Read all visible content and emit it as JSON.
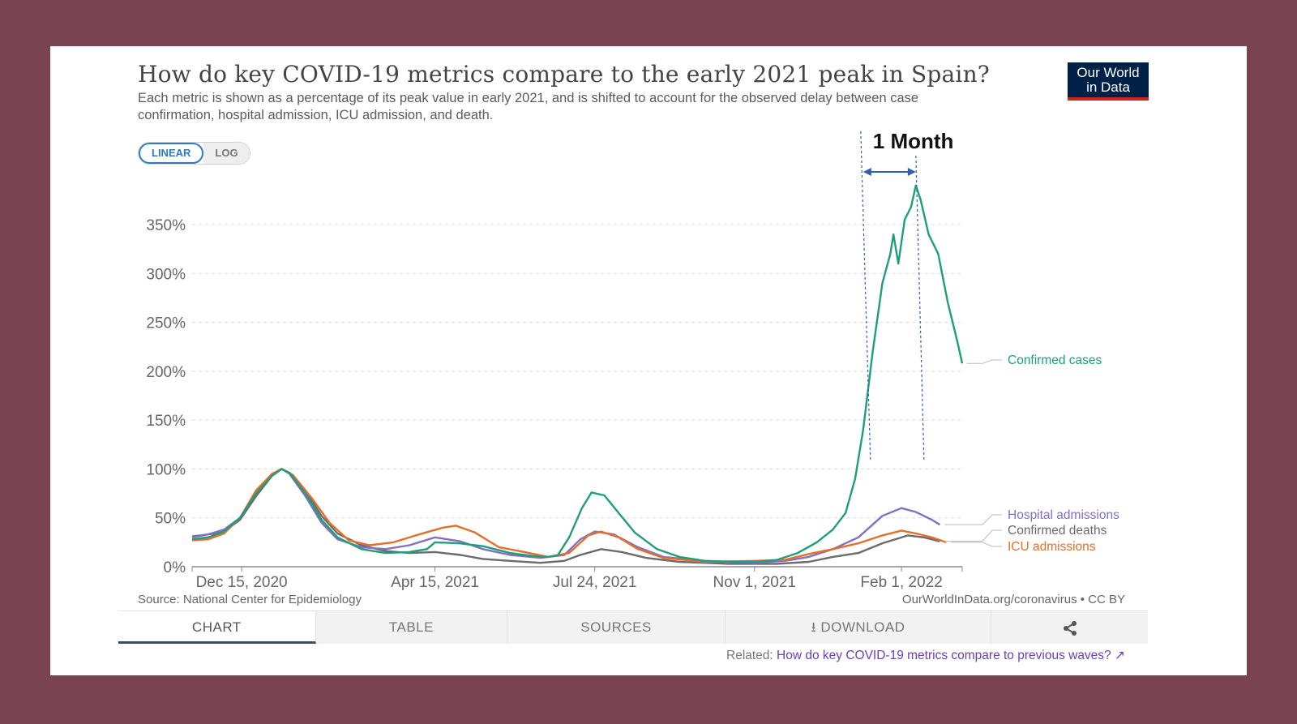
{
  "title": "How do key COVID-19 metrics compare to the early 2021 peak in Spain?",
  "subtitle": "Each metric is shown as a percentage of its peak value in early 2021, and is shifted to account for the observed delay between case confirmation, hospital admission, ICU admission, and death.",
  "logo": {
    "line1": "Our World",
    "line2": "in Data"
  },
  "scale_toggle": {
    "linear": "LINEAR",
    "log": "LOG"
  },
  "annotation": {
    "label": "1 Month"
  },
  "source_text": "Source: National Center for Epidemiology",
  "credit_text": "OurWorldInData.org/coronavirus • CC BY",
  "tabs": [
    "CHART",
    "TABLE",
    "SOURCES",
    "DOWNLOAD",
    ""
  ],
  "related": {
    "prefix": "Related:",
    "link": "How do key COVID-19 metrics compare to previous waves?"
  },
  "colors": {
    "confirmed_cases": "#1f9e7a",
    "hospital_admissions": "#8370c4",
    "confirmed_deaths": "#6b6b6b",
    "icu_admissions": "#e3702a",
    "annotation": "#2f5fb0"
  },
  "chart_data": {
    "type": "line",
    "xlabel": "",
    "ylabel": "",
    "ylim": [
      0,
      400
    ],
    "x_range": [
      "2020-11-14",
      "2022-03-11"
    ],
    "y_ticks": [
      0,
      50,
      100,
      150,
      200,
      250,
      300,
      350
    ],
    "y_tick_labels": [
      "0%",
      "50%",
      "100%",
      "150%",
      "200%",
      "250%",
      "300%",
      "350%"
    ],
    "x_ticks": [
      "2020-12-15",
      "2021-04-15",
      "2021-07-24",
      "2021-11-01",
      "2022-02-01"
    ],
    "x_tick_labels": [
      "Dec 15, 2020",
      "Apr 15, 2021",
      "Jul 24, 2021",
      "Nov 1, 2021",
      "Feb 1, 2022"
    ],
    "annotation": {
      "label": "1 Month",
      "from": "2022-01-08",
      "to": "2022-02-10"
    },
    "series": [
      {
        "name": "Confirmed cases",
        "key": "confirmed_cases",
        "points": [
          [
            "2020-11-14",
            28
          ],
          [
            "2020-11-24",
            30
          ],
          [
            "2020-12-04",
            36
          ],
          [
            "2020-12-14",
            50
          ],
          [
            "2020-12-24",
            75
          ],
          [
            "2021-01-03",
            93
          ],
          [
            "2021-01-09",
            100
          ],
          [
            "2021-01-14",
            96
          ],
          [
            "2021-01-24",
            75
          ],
          [
            "2021-02-03",
            48
          ],
          [
            "2021-02-13",
            30
          ],
          [
            "2021-02-28",
            18
          ],
          [
            "2021-03-15",
            14
          ],
          [
            "2021-03-30",
            15
          ],
          [
            "2021-04-10",
            18
          ],
          [
            "2021-04-15",
            25
          ],
          [
            "2021-04-30",
            24
          ],
          [
            "2021-05-15",
            21
          ],
          [
            "2021-06-01",
            14
          ],
          [
            "2021-06-15",
            11
          ],
          [
            "2021-06-25",
            10
          ],
          [
            "2021-07-01",
            12
          ],
          [
            "2021-07-08",
            30
          ],
          [
            "2021-07-16",
            60
          ],
          [
            "2021-07-22",
            76
          ],
          [
            "2021-07-30",
            73
          ],
          [
            "2021-08-08",
            55
          ],
          [
            "2021-08-18",
            35
          ],
          [
            "2021-09-01",
            18
          ],
          [
            "2021-09-15",
            10
          ],
          [
            "2021-10-01",
            6
          ],
          [
            "2021-10-20",
            5
          ],
          [
            "2021-11-01",
            5
          ],
          [
            "2021-11-15",
            7
          ],
          [
            "2021-11-28",
            14
          ],
          [
            "2021-12-10",
            25
          ],
          [
            "2021-12-20",
            38
          ],
          [
            "2021-12-28",
            55
          ],
          [
            "2022-01-03",
            90
          ],
          [
            "2022-01-08",
            140
          ],
          [
            "2022-01-14",
            220
          ],
          [
            "2022-01-20",
            290
          ],
          [
            "2022-01-25",
            320
          ],
          [
            "2022-01-27",
            340
          ],
          [
            "2022-01-30",
            310
          ],
          [
            "2022-02-03",
            355
          ],
          [
            "2022-02-07",
            368
          ],
          [
            "2022-02-10",
            390
          ],
          [
            "2022-02-13",
            375
          ],
          [
            "2022-02-18",
            340
          ],
          [
            "2022-02-24",
            320
          ],
          [
            "2022-03-02",
            270
          ],
          [
            "2022-03-08",
            230
          ],
          [
            "2022-03-11",
            208
          ]
        ]
      },
      {
        "name": "Hospital admissions",
        "key": "hospital_admissions",
        "points": [
          [
            "2020-11-14",
            30
          ],
          [
            "2020-11-24",
            33
          ],
          [
            "2020-12-04",
            38
          ],
          [
            "2020-12-14",
            50
          ],
          [
            "2020-12-24",
            75
          ],
          [
            "2021-01-03",
            93
          ],
          [
            "2021-01-09",
            100
          ],
          [
            "2021-01-14",
            95
          ],
          [
            "2021-01-24",
            72
          ],
          [
            "2021-02-03",
            45
          ],
          [
            "2021-02-13",
            28
          ],
          [
            "2021-02-28",
            20
          ],
          [
            "2021-03-15",
            18
          ],
          [
            "2021-03-30",
            22
          ],
          [
            "2021-04-15",
            30
          ],
          [
            "2021-05-01",
            26
          ],
          [
            "2021-05-15",
            18
          ],
          [
            "2021-06-01",
            12
          ],
          [
            "2021-06-20",
            9
          ],
          [
            "2021-07-05",
            12
          ],
          [
            "2021-07-15",
            28
          ],
          [
            "2021-07-24",
            36
          ],
          [
            "2021-08-05",
            33
          ],
          [
            "2021-08-20",
            20
          ],
          [
            "2021-09-05",
            10
          ],
          [
            "2021-10-01",
            6
          ],
          [
            "2021-11-01",
            4
          ],
          [
            "2021-11-20",
            6
          ],
          [
            "2021-12-05",
            10
          ],
          [
            "2021-12-20",
            18
          ],
          [
            "2022-01-05",
            30
          ],
          [
            "2022-01-20",
            52
          ],
          [
            "2022-02-01",
            60
          ],
          [
            "2022-02-10",
            56
          ],
          [
            "2022-02-20",
            48
          ],
          [
            "2022-02-25",
            43
          ]
        ]
      },
      {
        "name": "Confirmed deaths",
        "key": "confirmed_deaths",
        "points": [
          [
            "2020-11-14",
            31
          ],
          [
            "2020-11-24",
            33
          ],
          [
            "2020-12-04",
            36
          ],
          [
            "2020-12-14",
            48
          ],
          [
            "2020-12-24",
            72
          ],
          [
            "2021-01-03",
            93
          ],
          [
            "2021-01-09",
            100
          ],
          [
            "2021-01-14",
            96
          ],
          [
            "2021-01-24",
            78
          ],
          [
            "2021-02-03",
            52
          ],
          [
            "2021-02-13",
            34
          ],
          [
            "2021-02-28",
            22
          ],
          [
            "2021-03-15",
            16
          ],
          [
            "2021-03-30",
            14
          ],
          [
            "2021-04-15",
            15
          ],
          [
            "2021-05-01",
            12
          ],
          [
            "2021-05-15",
            8
          ],
          [
            "2021-06-01",
            6
          ],
          [
            "2021-06-20",
            4
          ],
          [
            "2021-07-05",
            6
          ],
          [
            "2021-07-15",
            12
          ],
          [
            "2021-07-28",
            18
          ],
          [
            "2021-08-10",
            15
          ],
          [
            "2021-08-25",
            9
          ],
          [
            "2021-09-15",
            5
          ],
          [
            "2021-10-15",
            3
          ],
          [
            "2021-11-15",
            3
          ],
          [
            "2021-12-05",
            5
          ],
          [
            "2021-12-20",
            10
          ],
          [
            "2022-01-05",
            14
          ],
          [
            "2022-01-20",
            24
          ],
          [
            "2022-02-05",
            32
          ],
          [
            "2022-02-15",
            30
          ],
          [
            "2022-02-25",
            26
          ]
        ]
      },
      {
        "name": "ICU admissions",
        "key": "icu_admissions",
        "points": [
          [
            "2020-11-14",
            27
          ],
          [
            "2020-11-24",
            28
          ],
          [
            "2020-12-04",
            34
          ],
          [
            "2020-12-14",
            50
          ],
          [
            "2020-12-24",
            78
          ],
          [
            "2021-01-03",
            95
          ],
          [
            "2021-01-09",
            100
          ],
          [
            "2021-01-16",
            94
          ],
          [
            "2021-01-28",
            70
          ],
          [
            "2021-02-08",
            45
          ],
          [
            "2021-02-20",
            27
          ],
          [
            "2021-03-05",
            22
          ],
          [
            "2021-03-20",
            25
          ],
          [
            "2021-04-05",
            33
          ],
          [
            "2021-04-20",
            40
          ],
          [
            "2021-04-28",
            42
          ],
          [
            "2021-05-10",
            35
          ],
          [
            "2021-05-25",
            20
          ],
          [
            "2021-06-10",
            15
          ],
          [
            "2021-06-25",
            10
          ],
          [
            "2021-07-08",
            14
          ],
          [
            "2021-07-20",
            32
          ],
          [
            "2021-07-28",
            36
          ],
          [
            "2021-08-08",
            30
          ],
          [
            "2021-08-20",
            18
          ],
          [
            "2021-09-05",
            9
          ],
          [
            "2021-10-01",
            5
          ],
          [
            "2021-11-01",
            6
          ],
          [
            "2021-11-20",
            7
          ],
          [
            "2021-12-05",
            13
          ],
          [
            "2021-12-20",
            18
          ],
          [
            "2022-01-05",
            24
          ],
          [
            "2022-01-20",
            32
          ],
          [
            "2022-02-01",
            37
          ],
          [
            "2022-02-10",
            34
          ],
          [
            "2022-02-20",
            30
          ],
          [
            "2022-03-01",
            25
          ]
        ]
      }
    ],
    "legend_position": "right"
  }
}
